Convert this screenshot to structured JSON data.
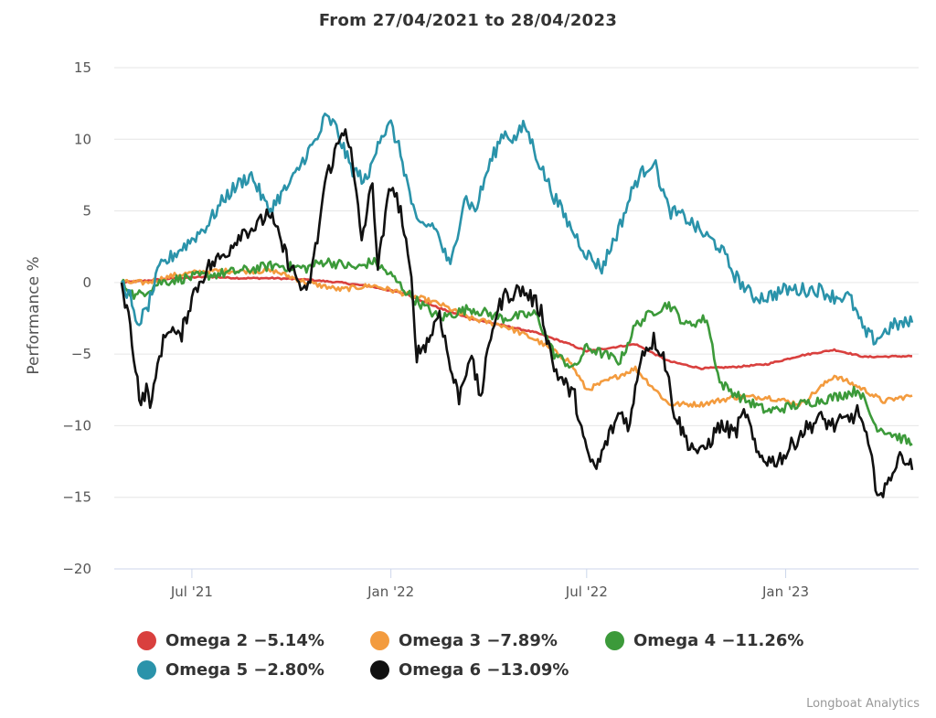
{
  "chart_data": {
    "type": "line",
    "title": "From 27/04/2021 to 28/04/2023",
    "xlabel": "",
    "ylabel": "Performance %",
    "ylim": [
      -20,
      15
    ],
    "yticks": [
      "15",
      "10",
      "5",
      "0",
      "−5",
      "−10",
      "−15",
      "−20"
    ],
    "ytick_values": [
      15,
      10,
      5,
      0,
      -5,
      -10,
      -15,
      -20
    ],
    "x_range": [
      "2021-04-27",
      "2023-04-28"
    ],
    "xticks": [
      {
        "label": "Jul '21",
        "date": "2021-07-01"
      },
      {
        "label": "Jan '22",
        "date": "2022-01-01"
      },
      {
        "label": "Jul '22",
        "date": "2022-07-01"
      },
      {
        "label": "Jan '23",
        "date": "2023-01-01"
      }
    ],
    "grid": true,
    "legend_position": "bottom",
    "series": [
      {
        "name": "Omega 2",
        "label": "Omega 2 −5.14%",
        "color": "#d9403e",
        "points": [
          [
            "2021-04-27",
            0
          ],
          [
            "2021-05-15",
            0.1
          ],
          [
            "2021-06-15",
            0.3
          ],
          [
            "2021-07-15",
            0.4
          ],
          [
            "2021-08-15",
            0.3
          ],
          [
            "2021-09-15",
            0.3
          ],
          [
            "2021-10-15",
            0.2
          ],
          [
            "2021-11-15",
            0
          ],
          [
            "2021-12-15",
            -0.3
          ],
          [
            "2022-01-15",
            -0.8
          ],
          [
            "2022-02-15",
            -1.8
          ],
          [
            "2022-03-15",
            -2.5
          ],
          [
            "2022-04-15",
            -3.0
          ],
          [
            "2022-05-15",
            -3.5
          ],
          [
            "2022-06-15",
            -4.3
          ],
          [
            "2022-07-01",
            -4.8
          ],
          [
            "2022-08-15",
            -4.3
          ],
          [
            "2022-09-15",
            -5.5
          ],
          [
            "2022-10-15",
            -6
          ],
          [
            "2022-11-15",
            -5.9
          ],
          [
            "2022-12-15",
            -5.7
          ],
          [
            "2023-01-15",
            -5.1
          ],
          [
            "2023-02-15",
            -4.7
          ],
          [
            "2023-03-15",
            -5.2
          ],
          [
            "2023-04-28",
            -5.14
          ]
        ]
      },
      {
        "name": "Omega 3",
        "label": "Omega 3 −7.89%",
        "color": "#f39b3e",
        "points": [
          [
            "2021-04-27",
            0
          ],
          [
            "2021-05-20",
            0
          ],
          [
            "2021-06-15",
            0.5
          ],
          [
            "2021-07-15",
            0.8
          ],
          [
            "2021-08-15",
            0.8
          ],
          [
            "2021-09-15",
            0.8
          ],
          [
            "2021-10-15",
            0
          ],
          [
            "2021-11-15",
            -0.5
          ],
          [
            "2021-12-15",
            -0.2
          ],
          [
            "2022-01-15",
            -0.8
          ],
          [
            "2022-02-15",
            -1.5
          ],
          [
            "2022-03-15",
            -2.5
          ],
          [
            "2022-04-15",
            -3
          ],
          [
            "2022-05-15",
            -4
          ],
          [
            "2022-06-15",
            -5.5
          ],
          [
            "2022-07-01",
            -7.5
          ],
          [
            "2022-08-15",
            -6
          ],
          [
            "2022-09-15",
            -8.5
          ],
          [
            "2022-10-15",
            -8.5
          ],
          [
            "2022-11-15",
            -8
          ],
          [
            "2022-12-15",
            -8
          ],
          [
            "2023-01-15",
            -8.5
          ],
          [
            "2023-02-15",
            -6.5
          ],
          [
            "2023-03-15",
            -7.5
          ],
          [
            "2023-04-01",
            -8.3
          ],
          [
            "2023-04-28",
            -7.89
          ]
        ]
      },
      {
        "name": "Omega 4",
        "label": "Omega 4 −11.26%",
        "color": "#3c9a3a",
        "points": [
          [
            "2021-04-27",
            0
          ],
          [
            "2021-05-10",
            -1
          ],
          [
            "2021-06-01",
            0
          ],
          [
            "2021-06-15",
            0.2
          ],
          [
            "2021-07-15",
            0.5
          ],
          [
            "2021-08-15",
            0.8
          ],
          [
            "2021-09-15",
            1.2
          ],
          [
            "2021-10-15",
            1
          ],
          [
            "2021-11-01",
            1.5
          ],
          [
            "2021-12-01",
            1
          ],
          [
            "2021-12-15",
            1.5
          ],
          [
            "2022-01-01",
            0.5
          ],
          [
            "2022-01-20",
            -1
          ],
          [
            "2022-02-15",
            -2.5
          ],
          [
            "2022-03-15",
            -1.8
          ],
          [
            "2022-04-15",
            -2.5
          ],
          [
            "2022-05-15",
            -2.2
          ],
          [
            "2022-06-01",
            -5
          ],
          [
            "2022-06-20",
            -6
          ],
          [
            "2022-07-01",
            -4.5
          ],
          [
            "2022-08-01",
            -5.5
          ],
          [
            "2022-08-15",
            -3
          ],
          [
            "2022-09-01",
            -2
          ],
          [
            "2022-09-15",
            -1.5
          ],
          [
            "2022-10-01",
            -3
          ],
          [
            "2022-10-20",
            -2.5
          ],
          [
            "2022-11-01",
            -7
          ],
          [
            "2022-11-20",
            -8
          ],
          [
            "2022-12-15",
            -9
          ],
          [
            "2023-01-15",
            -8.5
          ],
          [
            "2023-02-15",
            -8
          ],
          [
            "2023-03-10",
            -7.5
          ],
          [
            "2023-03-25",
            -10
          ],
          [
            "2023-04-28",
            -11.26
          ]
        ]
      },
      {
        "name": "Omega 5",
        "label": "Omega 5 −2.80%",
        "color": "#2a93aa",
        "points": [
          [
            "2021-04-27",
            0
          ],
          [
            "2021-05-05",
            -1
          ],
          [
            "2021-05-10",
            -3
          ],
          [
            "2021-05-20",
            -2
          ],
          [
            "2021-06-01",
            1
          ],
          [
            "2021-06-15",
            2
          ],
          [
            "2021-07-01",
            3
          ],
          [
            "2021-07-15",
            4
          ],
          [
            "2021-08-01",
            6
          ],
          [
            "2021-08-15",
            7
          ],
          [
            "2021-08-25",
            7.5
          ],
          [
            "2021-09-10",
            5
          ],
          [
            "2021-09-20",
            6
          ],
          [
            "2021-10-01",
            7
          ],
          [
            "2021-10-15",
            9
          ],
          [
            "2021-10-25",
            10
          ],
          [
            "2021-11-01",
            11.5
          ],
          [
            "2021-11-10",
            11
          ],
          [
            "2021-11-25",
            8
          ],
          [
            "2021-12-10",
            7
          ],
          [
            "2021-12-20",
            10
          ],
          [
            "2022-01-01",
            11
          ],
          [
            "2022-01-10",
            9
          ],
          [
            "2022-01-25",
            4
          ],
          [
            "2022-02-10",
            4
          ],
          [
            "2022-02-25",
            1
          ],
          [
            "2022-03-10",
            6
          ],
          [
            "2022-03-20",
            5
          ],
          [
            "2022-04-01",
            8
          ],
          [
            "2022-04-15",
            10.5
          ],
          [
            "2022-04-25",
            10
          ],
          [
            "2022-05-05",
            11
          ],
          [
            "2022-05-20",
            8
          ],
          [
            "2022-06-01",
            6
          ],
          [
            "2022-06-15",
            4
          ],
          [
            "2022-07-01",
            2
          ],
          [
            "2022-07-15",
            1
          ],
          [
            "2022-08-01",
            4
          ],
          [
            "2022-08-15",
            7
          ],
          [
            "2022-08-25",
            8
          ],
          [
            "2022-09-01",
            8.5
          ],
          [
            "2022-09-15",
            5
          ],
          [
            "2022-10-01",
            4.5
          ],
          [
            "2022-10-15",
            3.5
          ],
          [
            "2022-11-01",
            2.5
          ],
          [
            "2022-11-15",
            0.5
          ],
          [
            "2022-12-01",
            -1
          ],
          [
            "2022-12-15",
            -1
          ],
          [
            "2023-01-01",
            -0.5
          ],
          [
            "2023-01-15",
            -0.5
          ],
          [
            "2023-02-01",
            -0.5
          ],
          [
            "2023-02-15",
            -1
          ],
          [
            "2023-03-01",
            -1
          ],
          [
            "2023-03-15",
            -3.5
          ],
          [
            "2023-03-25",
            -4
          ],
          [
            "2023-04-10",
            -3
          ],
          [
            "2023-04-28",
            -2.8
          ]
        ]
      },
      {
        "name": "Omega 6",
        "label": "Omega 6 −13.09%",
        "color": "#111111",
        "points": [
          [
            "2021-04-27",
            0
          ],
          [
            "2021-05-05",
            -3
          ],
          [
            "2021-05-10",
            -6
          ],
          [
            "2021-05-15",
            -8.5
          ],
          [
            "2021-05-20",
            -7.5
          ],
          [
            "2021-05-25",
            -8.5
          ],
          [
            "2021-06-01",
            -5
          ],
          [
            "2021-06-10",
            -3
          ],
          [
            "2021-06-20",
            -4
          ],
          [
            "2021-07-01",
            -1
          ],
          [
            "2021-07-15",
            1
          ],
          [
            "2021-08-01",
            2
          ],
          [
            "2021-08-15",
            3.5
          ],
          [
            "2021-09-01",
            4
          ],
          [
            "2021-09-10",
            5
          ],
          [
            "2021-09-20",
            3
          ],
          [
            "2021-10-01",
            1
          ],
          [
            "2021-10-15",
            -1
          ],
          [
            "2021-10-25",
            3
          ],
          [
            "2021-11-01",
            7
          ],
          [
            "2021-11-10",
            9
          ],
          [
            "2021-11-20",
            11
          ],
          [
            "2021-11-25",
            9
          ],
          [
            "2021-12-05",
            3
          ],
          [
            "2021-12-15",
            7
          ],
          [
            "2021-12-20",
            1
          ],
          [
            "2022-01-01",
            7
          ],
          [
            "2022-01-10",
            5
          ],
          [
            "2022-01-20",
            0
          ],
          [
            "2022-01-25",
            -5
          ],
          [
            "2022-02-05",
            -4
          ],
          [
            "2022-02-15",
            -2
          ],
          [
            "2022-02-25",
            -6
          ],
          [
            "2022-03-05",
            -8
          ],
          [
            "2022-03-15",
            -5
          ],
          [
            "2022-03-25",
            -8
          ],
          [
            "2022-04-05",
            -3
          ],
          [
            "2022-04-15",
            -1
          ],
          [
            "2022-05-01",
            -0.5
          ],
          [
            "2022-05-10",
            -1
          ],
          [
            "2022-05-20",
            -2
          ],
          [
            "2022-06-01",
            -6
          ],
          [
            "2022-06-10",
            -7
          ],
          [
            "2022-06-20",
            -8
          ],
          [
            "2022-07-01",
            -12
          ],
          [
            "2022-07-10",
            -13
          ],
          [
            "2022-07-20",
            -11
          ],
          [
            "2022-08-01",
            -9
          ],
          [
            "2022-08-10",
            -10
          ],
          [
            "2022-08-20",
            -5
          ],
          [
            "2022-09-01",
            -4
          ],
          [
            "2022-09-10",
            -5
          ],
          [
            "2022-09-20",
            -9
          ],
          [
            "2022-10-01",
            -11
          ],
          [
            "2022-10-15",
            -12
          ],
          [
            "2022-11-01",
            -10
          ],
          [
            "2022-11-15",
            -10.5
          ],
          [
            "2022-11-25",
            -9
          ],
          [
            "2022-12-05",
            -12
          ],
          [
            "2022-12-20",
            -12.5
          ],
          [
            "2023-01-01",
            -12
          ],
          [
            "2023-01-15",
            -10.5
          ],
          [
            "2023-02-01",
            -9.5
          ],
          [
            "2023-02-15",
            -10
          ],
          [
            "2023-03-01",
            -9.5
          ],
          [
            "2023-03-10",
            -9
          ],
          [
            "2023-03-20",
            -12
          ],
          [
            "2023-03-25",
            -14
          ],
          [
            "2023-04-01",
            -15
          ],
          [
            "2023-04-10",
            -13
          ],
          [
            "2023-04-20",
            -12
          ],
          [
            "2023-04-28",
            -13.09
          ]
        ]
      }
    ]
  },
  "credits": "Longboat Analytics"
}
